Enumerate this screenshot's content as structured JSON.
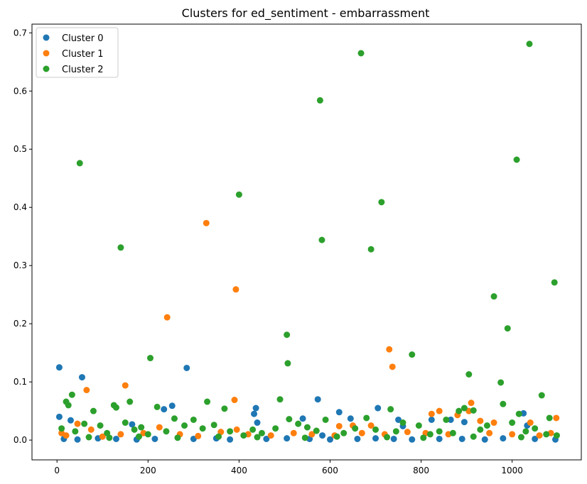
{
  "chart_data": {
    "type": "scatter",
    "title": "Clusters for ed_sentiment - embarrassment",
    "xlabel": "",
    "ylabel": "",
    "xlim": [
      -55,
      1152
    ],
    "ylim": [
      -0.034,
      0.715
    ],
    "xticks": [
      0,
      200,
      400,
      600,
      800,
      1000
    ],
    "yticks": [
      0.0,
      0.1,
      0.2,
      0.3,
      0.4,
      0.5,
      0.6,
      0.7
    ],
    "ytick_labels": [
      "0.0",
      "0.1",
      "0.2",
      "0.3",
      "0.4",
      "0.5",
      "0.6",
      "0.7"
    ],
    "grid": false,
    "legend": "top-left",
    "colors": {
      "Cluster 0": "#1f77b4",
      "Cluster 1": "#ff7f0e",
      "Cluster 2": "#2ca02c"
    },
    "series": [
      {
        "name": "Cluster 0",
        "color": "#1f77b4",
        "points": [
          [
            5,
            0.125
          ],
          [
            5,
            0.04
          ],
          [
            30,
            0.034
          ],
          [
            55,
            0.108
          ],
          [
            235,
            0.053
          ],
          [
            253,
            0.059
          ],
          [
            285,
            0.124
          ],
          [
            165,
            0.027
          ],
          [
            433,
            0.045
          ],
          [
            437,
            0.055
          ],
          [
            440,
            0.03
          ],
          [
            540,
            0.037
          ],
          [
            573,
            0.07
          ],
          [
            583,
            0.008
          ],
          [
            620,
            0.048
          ],
          [
            645,
            0.037
          ],
          [
            705,
            0.055
          ],
          [
            750,
            0.035
          ],
          [
            760,
            0.024
          ],
          [
            823,
            0.035
          ],
          [
            865,
            0.035
          ],
          [
            895,
            0.031
          ],
          [
            1025,
            0.046
          ],
          [
            1033,
            0.025
          ],
          [
            15,
            0.002
          ],
          [
            45,
            0.001
          ],
          [
            90,
            0.003
          ],
          [
            130,
            0.002
          ],
          [
            175,
            0.001
          ],
          [
            215,
            0.002
          ],
          [
            300,
            0.002
          ],
          [
            350,
            0.003
          ],
          [
            380,
            0.001
          ],
          [
            460,
            0.002
          ],
          [
            505,
            0.003
          ],
          [
            555,
            0.002
          ],
          [
            600,
            0.001
          ],
          [
            660,
            0.002
          ],
          [
            700,
            0.003
          ],
          [
            740,
            0.002
          ],
          [
            780,
            0.001
          ],
          [
            840,
            0.002
          ],
          [
            890,
            0.002
          ],
          [
            940,
            0.001
          ],
          [
            980,
            0.003
          ],
          [
            1050,
            0.002
          ],
          [
            1095,
            0.001
          ]
        ]
      },
      {
        "name": "Cluster 1",
        "color": "#ff7f0e",
        "points": [
          [
            45,
            0.028
          ],
          [
            65,
            0.086
          ],
          [
            150,
            0.094
          ],
          [
            242,
            0.211
          ],
          [
            328,
            0.373
          ],
          [
            390,
            0.069
          ],
          [
            393,
            0.259
          ],
          [
            730,
            0.156
          ],
          [
            737,
            0.126
          ],
          [
            823,
            0.045
          ],
          [
            840,
            0.05
          ],
          [
            910,
            0.064
          ],
          [
            930,
            0.033
          ],
          [
            960,
            0.03
          ],
          [
            1040,
            0.03
          ],
          [
            1097,
            0.038
          ],
          [
            620,
            0.024
          ],
          [
            650,
            0.025
          ],
          [
            690,
            0.025
          ],
          [
            880,
            0.043
          ],
          [
            10,
            0.012
          ],
          [
            20,
            0.008
          ],
          [
            75,
            0.018
          ],
          [
            100,
            0.006
          ],
          [
            140,
            0.01
          ],
          [
            190,
            0.012
          ],
          [
            225,
            0.022
          ],
          [
            270,
            0.01
          ],
          [
            310,
            0.007
          ],
          [
            360,
            0.014
          ],
          [
            395,
            0.018
          ],
          [
            420,
            0.01
          ],
          [
            470,
            0.008
          ],
          [
            520,
            0.012
          ],
          [
            560,
            0.01
          ],
          [
            610,
            0.008
          ],
          [
            670,
            0.012
          ],
          [
            720,
            0.01
          ],
          [
            770,
            0.014
          ],
          [
            810,
            0.012
          ],
          [
            860,
            0.01
          ],
          [
            905,
            0.05
          ],
          [
            950,
            0.012
          ],
          [
            1000,
            0.01
          ],
          [
            1060,
            0.008
          ],
          [
            1085,
            0.012
          ]
        ]
      },
      {
        "name": "Cluster 2",
        "color": "#2ca02c",
        "points": [
          [
            50,
            0.476
          ],
          [
            140,
            0.331
          ],
          [
            205,
            0.141
          ],
          [
            400,
            0.422
          ],
          [
            505,
            0.181
          ],
          [
            507,
            0.132
          ],
          [
            578,
            0.584
          ],
          [
            582,
            0.344
          ],
          [
            668,
            0.665
          ],
          [
            713,
            0.409
          ],
          [
            690,
            0.328
          ],
          [
            780,
            0.147
          ],
          [
            905,
            0.113
          ],
          [
            960,
            0.247
          ],
          [
            975,
            0.099
          ],
          [
            990,
            0.192
          ],
          [
            1010,
            0.482
          ],
          [
            1038,
            0.681
          ],
          [
            1065,
            0.077
          ],
          [
            1093,
            0.271
          ],
          [
            20,
            0.066
          ],
          [
            25,
            0.06
          ],
          [
            33,
            0.078
          ],
          [
            80,
            0.05
          ],
          [
            125,
            0.06
          ],
          [
            130,
            0.056
          ],
          [
            160,
            0.066
          ],
          [
            220,
            0.057
          ],
          [
            330,
            0.066
          ],
          [
            368,
            0.054
          ],
          [
            490,
            0.07
          ],
          [
            733,
            0.053
          ],
          [
            855,
            0.035
          ],
          [
            883,
            0.05
          ],
          [
            895,
            0.055
          ],
          [
            915,
            0.051
          ],
          [
            1015,
            0.045
          ],
          [
            1082,
            0.038
          ],
          [
            980,
            0.062
          ],
          [
            945,
            0.025
          ],
          [
            10,
            0.02
          ],
          [
            40,
            0.015
          ],
          [
            60,
            0.028
          ],
          [
            95,
            0.025
          ],
          [
            110,
            0.012
          ],
          [
            150,
            0.03
          ],
          [
            170,
            0.018
          ],
          [
            185,
            0.022
          ],
          [
            200,
            0.01
          ],
          [
            240,
            0.015
          ],
          [
            258,
            0.037
          ],
          [
            280,
            0.025
          ],
          [
            300,
            0.035
          ],
          [
            320,
            0.02
          ],
          [
            345,
            0.026
          ],
          [
            380,
            0.015
          ],
          [
            410,
            0.008
          ],
          [
            430,
            0.018
          ],
          [
            450,
            0.012
          ],
          [
            480,
            0.02
          ],
          [
            510,
            0.036
          ],
          [
            530,
            0.028
          ],
          [
            550,
            0.022
          ],
          [
            570,
            0.016
          ],
          [
            590,
            0.035
          ],
          [
            630,
            0.012
          ],
          [
            655,
            0.02
          ],
          [
            680,
            0.038
          ],
          [
            700,
            0.018
          ],
          [
            745,
            0.015
          ],
          [
            760,
            0.03
          ],
          [
            795,
            0.025
          ],
          [
            820,
            0.01
          ],
          [
            840,
            0.015
          ],
          [
            870,
            0.012
          ],
          [
            930,
            0.018
          ],
          [
            1000,
            0.03
          ],
          [
            1030,
            0.015
          ],
          [
            1050,
            0.02
          ],
          [
            1075,
            0.01
          ],
          [
            1098,
            0.008
          ],
          [
            70,
            0.005
          ],
          [
            115,
            0.004
          ],
          [
            180,
            0.006
          ],
          [
            265,
            0.004
          ],
          [
            355,
            0.006
          ],
          [
            440,
            0.005
          ],
          [
            545,
            0.004
          ],
          [
            615,
            0.006
          ],
          [
            725,
            0.005
          ],
          [
            805,
            0.004
          ],
          [
            915,
            0.006
          ],
          [
            1020,
            0.005
          ]
        ]
      }
    ]
  }
}
